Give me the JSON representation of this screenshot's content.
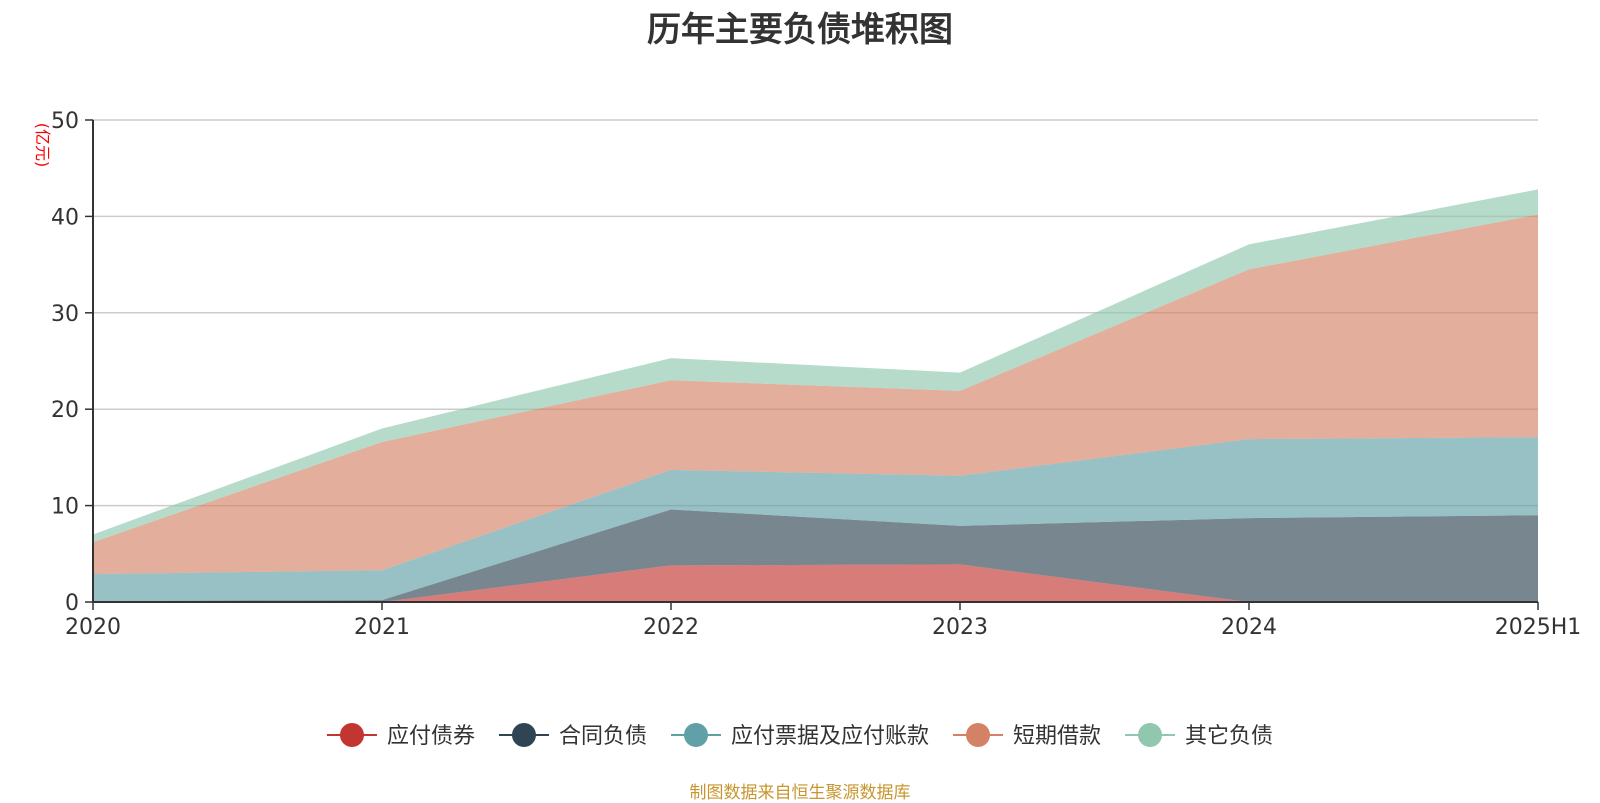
{
  "chart_data": {
    "type": "area",
    "stacked": true,
    "title": "历年主要负债堆积图",
    "unit_label": "(亿元)",
    "categories": [
      "2020",
      "2021",
      "2022",
      "2023",
      "2024",
      "2025H1"
    ],
    "ylim": [
      0,
      50
    ],
    "yticks": [
      0,
      10,
      20,
      30,
      40,
      50
    ],
    "grid": true,
    "legend_position": "bottom-center",
    "series": [
      {
        "name": "应付债券",
        "color": "#c23531",
        "values": [
          0,
          0,
          3.8,
          3.9,
          0,
          0
        ]
      },
      {
        "name": "合同负债",
        "color": "#2f4554",
        "values": [
          0.1,
          0.2,
          5.8,
          4.0,
          8.7,
          9.0
        ]
      },
      {
        "name": "应付票据及应付账款",
        "color": "#61a0a8",
        "values": [
          2.8,
          3.1,
          4.1,
          5.2,
          8.2,
          8.1
        ]
      },
      {
        "name": "短期借款",
        "color": "#d48265",
        "values": [
          3.3,
          13.3,
          9.3,
          8.8,
          17.6,
          23.1
        ]
      },
      {
        "name": "其它负债",
        "color": "#91c7ae",
        "values": [
          0.8,
          1.4,
          2.3,
          1.9,
          2.6,
          2.6
        ]
      }
    ]
  },
  "footer": {
    "source": "制图数据来自恒生聚源数据库"
  }
}
